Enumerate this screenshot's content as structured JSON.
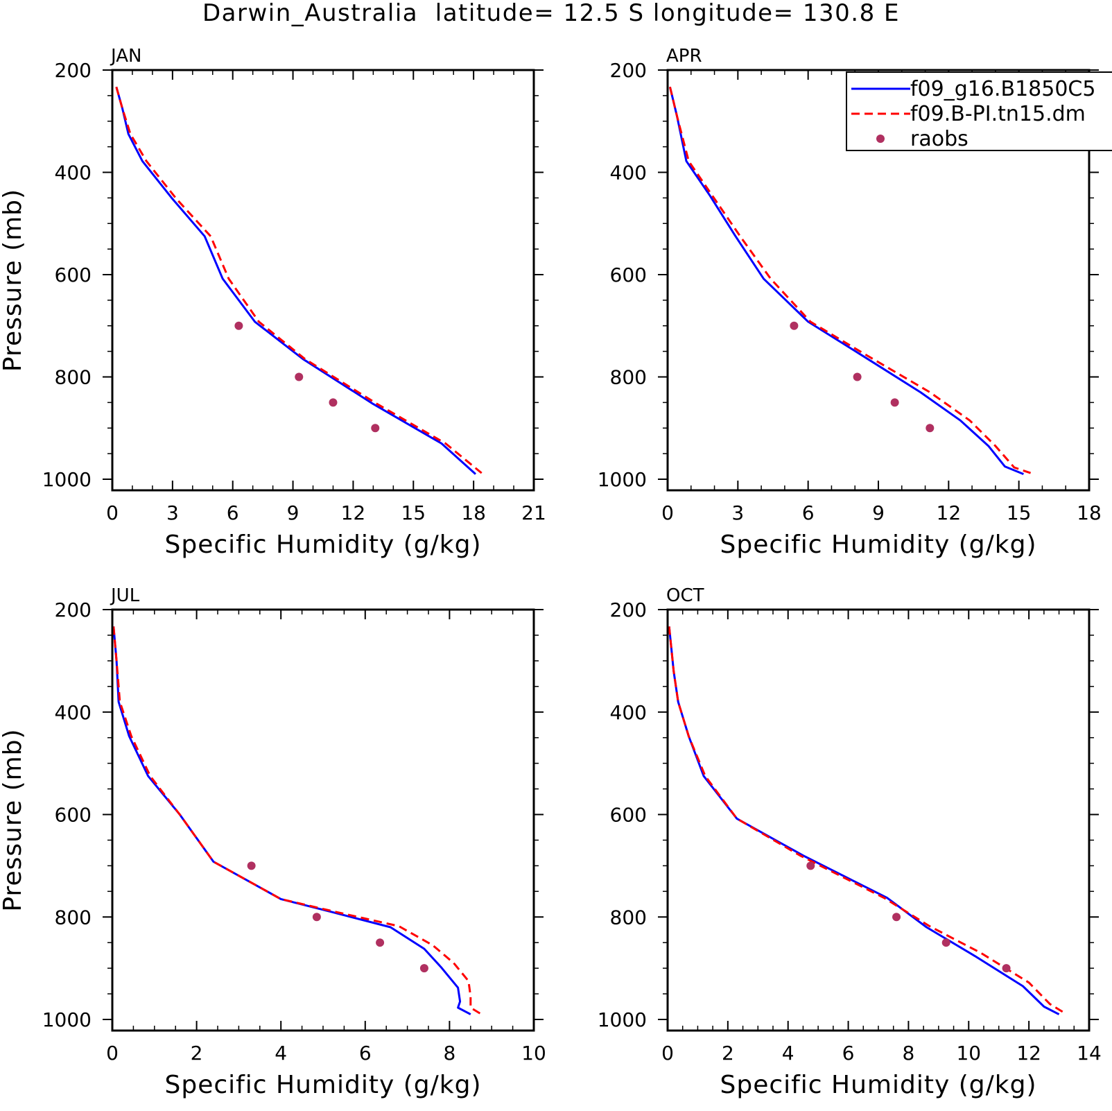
{
  "title": "Darwin_Australia  latitude= 12.5 S longitude= 130.8 E",
  "legend": {
    "entries": [
      {
        "label": "f09_g16.B1850C5",
        "style": "solid",
        "color": "#0000ff"
      },
      {
        "label": "f09.B-PI.tn15.dm",
        "style": "dashed",
        "color": "#ff0000"
      },
      {
        "label": "raobs",
        "style": "marker",
        "color": "#b03060"
      }
    ]
  },
  "colors": {
    "model1": "#0000ff",
    "model2": "#ff0000",
    "raobs": "#b03060"
  },
  "chart_data": [
    {
      "type": "line",
      "panel_label": "JAN",
      "xlabel": "Specific Humidity (g/kg)",
      "ylabel": "Pressure (mb)",
      "xlim": [
        0,
        21
      ],
      "ylim": [
        1000,
        200
      ],
      "y_inverted": true,
      "xticks": [
        0,
        3,
        6,
        9,
        12,
        15,
        18,
        21
      ],
      "yticks": [
        200,
        400,
        600,
        800,
        1000
      ],
      "series": [
        {
          "name": "f09_g16.B1850C5",
          "x": [
            0.2,
            0.5,
            0.8,
            1.5,
            3.0,
            4.6,
            5.5,
            7.1,
            9.5,
            13.0,
            16.4,
            18.1
          ],
          "y": [
            233,
            275,
            325,
            378,
            452,
            525,
            608,
            692,
            765,
            853,
            930,
            990
          ]
        },
        {
          "name": "f09.B-PI.tn15.dm",
          "x": [
            0.2,
            0.5,
            0.9,
            1.7,
            3.2,
            4.9,
            5.8,
            7.3,
            9.6,
            13.2,
            16.6,
            18.4
          ],
          "y": [
            233,
            275,
            325,
            378,
            452,
            525,
            608,
            692,
            765,
            853,
            930,
            988
          ]
        },
        {
          "name": "raobs",
          "x": [
            6.3,
            9.3,
            11.0,
            13.1
          ],
          "y": [
            700,
            800,
            850,
            900
          ]
        }
      ]
    },
    {
      "type": "line",
      "panel_label": "APR",
      "xlabel": "Specific Humidity (g/kg)",
      "ylabel": "",
      "xlim": [
        0,
        18
      ],
      "ylim": [
        1000,
        200
      ],
      "y_inverted": true,
      "xticks": [
        0,
        3,
        6,
        9,
        12,
        15,
        18
      ],
      "yticks": [
        200,
        400,
        600,
        800,
        1000
      ],
      "series": [
        {
          "name": "f09_g16.B1850C5",
          "x": [
            0.1,
            0.4,
            0.8,
            1.8,
            2.9,
            4.1,
            6.0,
            8.2,
            10.8,
            12.5,
            13.7,
            14.4,
            15.2
          ],
          "y": [
            233,
            290,
            378,
            445,
            525,
            608,
            692,
            755,
            830,
            885,
            935,
            975,
            990
          ]
        },
        {
          "name": "f09.B-PI.tn15.dm",
          "x": [
            0.1,
            0.4,
            0.9,
            1.9,
            3.1,
            4.4,
            6.1,
            8.4,
            11.2,
            12.9,
            14.0,
            14.8,
            15.5
          ],
          "y": [
            233,
            290,
            378,
            445,
            525,
            608,
            692,
            755,
            830,
            885,
            935,
            977,
            988
          ]
        },
        {
          "name": "raobs",
          "x": [
            5.4,
            8.1,
            9.7,
            11.2
          ],
          "y": [
            700,
            800,
            850,
            900
          ]
        }
      ]
    },
    {
      "type": "line",
      "panel_label": "JUL",
      "xlabel": "Specific Humidity (g/kg)",
      "ylabel": "Pressure (mb)",
      "xlim": [
        0,
        10
      ],
      "ylim": [
        1000,
        200
      ],
      "y_inverted": true,
      "xticks": [
        0,
        2,
        4,
        6,
        8,
        10
      ],
      "yticks": [
        200,
        400,
        600,
        800,
        1000
      ],
      "series": [
        {
          "name": "f09_g16.B1850C5",
          "x": [
            0.03,
            0.1,
            0.15,
            0.4,
            0.85,
            1.6,
            2.4,
            4.0,
            5.2,
            6.6,
            7.4,
            7.8,
            8.2,
            8.25,
            8.2,
            8.5
          ],
          "y": [
            233,
            300,
            380,
            447,
            525,
            600,
            692,
            765,
            790,
            820,
            862,
            898,
            938,
            965,
            977,
            990
          ]
        },
        {
          "name": "f09.B-PI.tn15.dm",
          "x": [
            0.03,
            0.1,
            0.18,
            0.45,
            0.9,
            1.6,
            2.4,
            4.0,
            5.3,
            6.8,
            7.6,
            8.1,
            8.45,
            8.5,
            8.5,
            8.8
          ],
          "y": [
            233,
            300,
            380,
            447,
            525,
            600,
            692,
            765,
            790,
            818,
            855,
            890,
            925,
            955,
            977,
            992
          ]
        },
        {
          "name": "raobs",
          "x": [
            3.3,
            4.85,
            6.35,
            7.4
          ],
          "y": [
            700,
            800,
            850,
            900
          ]
        }
      ]
    },
    {
      "type": "line",
      "panel_label": "OCT",
      "xlabel": "Specific Humidity (g/kg)",
      "ylabel": "",
      "xlim": [
        0,
        14
      ],
      "ylim": [
        1000,
        200
      ],
      "y_inverted": true,
      "xticks": [
        0,
        2,
        4,
        6,
        8,
        10,
        12,
        14
      ],
      "yticks": [
        200,
        400,
        600,
        800,
        1000
      ],
      "series": [
        {
          "name": "f09_g16.B1850C5",
          "x": [
            0.05,
            0.2,
            0.35,
            0.7,
            1.2,
            2.3,
            4.5,
            7.3,
            8.6,
            10.2,
            11.8,
            12.5,
            13.0
          ],
          "y": [
            233,
            320,
            380,
            447,
            525,
            608,
            680,
            763,
            820,
            876,
            935,
            975,
            990
          ]
        },
        {
          "name": "f09.B-PI.tn15.dm",
          "x": [
            0.05,
            0.2,
            0.35,
            0.7,
            1.25,
            2.3,
            4.4,
            7.2,
            8.7,
            10.4,
            12.0,
            12.7,
            13.2
          ],
          "y": [
            233,
            320,
            380,
            447,
            525,
            608,
            680,
            763,
            818,
            870,
            928,
            970,
            988
          ]
        },
        {
          "name": "raobs",
          "x": [
            4.75,
            7.6,
            9.25,
            11.25
          ],
          "y": [
            700,
            800,
            850,
            900
          ]
        }
      ]
    }
  ]
}
